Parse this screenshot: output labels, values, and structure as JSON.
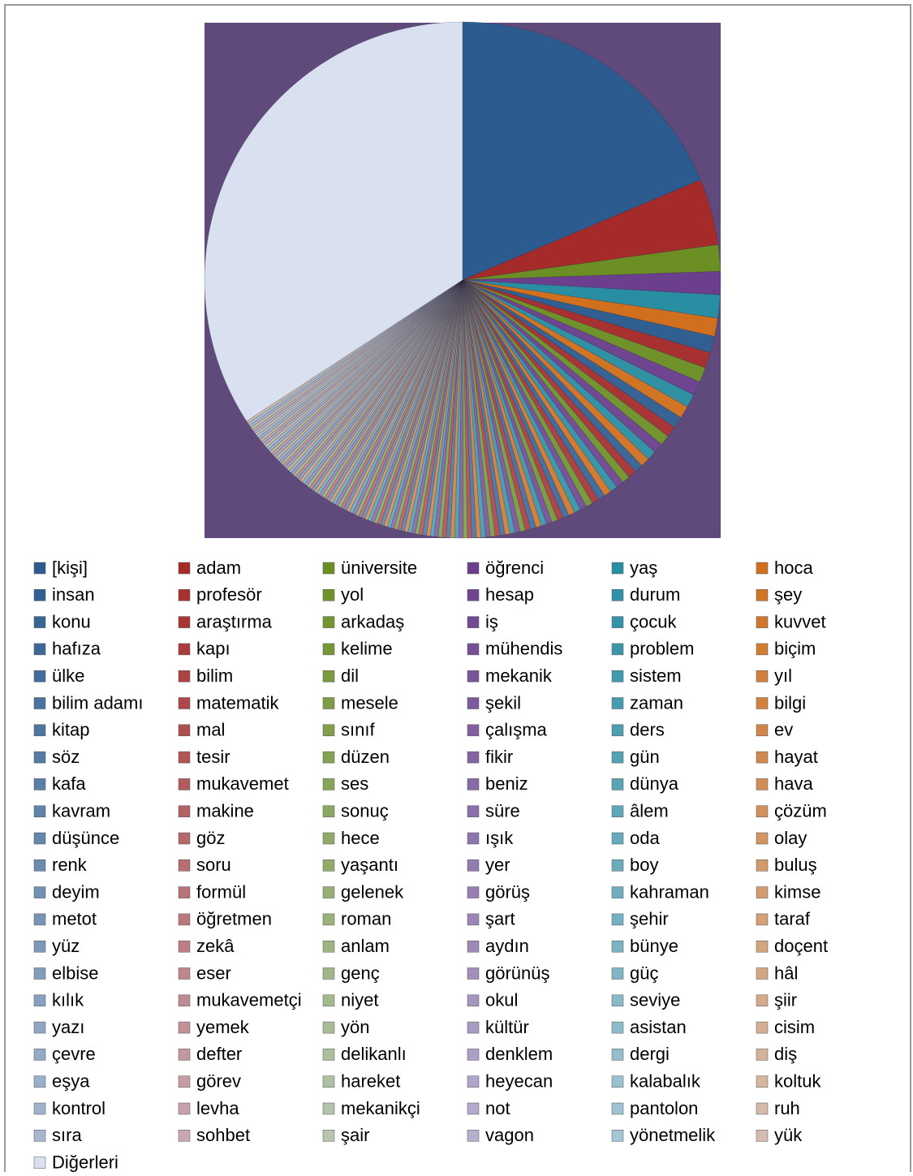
{
  "chart_data": {
    "type": "pie",
    "categories": [
      "[kişi]",
      "adam",
      "üniversite",
      "öğrenci",
      "yaş",
      "hoca",
      "insan",
      "profesör",
      "yol",
      "hesap",
      "durum",
      "şey",
      "konu",
      "araştırma",
      "arkadaş",
      "iş",
      "çocuk",
      "kuvvet",
      "hafıza",
      "kapı",
      "kelime",
      "mühendis",
      "problem",
      "biçim",
      "ülke",
      "bilim",
      "dil",
      "mekanik",
      "sistem",
      "yıl",
      "bilim adamı",
      "matematik",
      "mesele",
      "şekil",
      "zaman",
      "bilgi",
      "kitap",
      "mal",
      "sınıf",
      "çalışma",
      "ders",
      "ev",
      "söz",
      "tesir",
      "düzen",
      "fikir",
      "gün",
      "hayat",
      "kafa",
      "mukavemet",
      "ses",
      "beniz",
      "dünya",
      "hava",
      "kavram",
      "makine",
      "sonuç",
      "süre",
      "âlem",
      "çözüm",
      "düşünce",
      "göz",
      "hece",
      "ışık",
      "oda",
      "olay",
      "renk",
      "soru",
      "yaşantı",
      "yer",
      "boy",
      "buluş",
      "deyim",
      "formül",
      "gelenek",
      "görüş",
      "kahraman",
      "kimse",
      "metot",
      "öğretmen",
      "roman",
      "şart",
      "şehir",
      "taraf",
      "yüz",
      "zekâ",
      "anlam",
      "aydın",
      "bünye",
      "doçent",
      "elbise",
      "eser",
      "genç",
      "görünüş",
      "güç",
      "hâl",
      "kılık",
      "mukavemetçi",
      "niyet",
      "okul",
      "seviye",
      "şiir",
      "yazı",
      "yemek",
      "yön",
      "kültür",
      "asistan",
      "cisim",
      "çevre",
      "defter",
      "delikanlı",
      "denklem",
      "dergi",
      "diş",
      "eşya",
      "görev",
      "hareket",
      "heyecan",
      "kalabalık",
      "koltuk",
      "kontrol",
      "levha",
      "mekanikçi",
      "not",
      "pantolon",
      "ruh",
      "sıra",
      "sohbet",
      "şair",
      "vagon",
      "yönetmelik",
      "yük",
      "Diğerleri"
    ],
    "values": [
      18,
      4,
      1.6,
      1.4,
      1.4,
      1.1,
      1.0,
      0.95,
      0.9,
      0.85,
      0.8,
      0.75,
      0.7,
      0.65,
      0.62,
      0.6,
      0.57,
      0.55,
      0.52,
      0.5,
      0.48,
      0.46,
      0.45,
      0.44,
      0.43,
      0.42,
      0.41,
      0.4,
      0.39,
      0.38,
      0.37,
      0.36,
      0.35,
      0.34,
      0.34,
      0.33,
      0.33,
      0.32,
      0.32,
      0.31,
      0.31,
      0.3,
      0.3,
      0.29,
      0.29,
      0.28,
      0.28,
      0.27,
      0.27,
      0.26,
      0.26,
      0.26,
      0.25,
      0.25,
      0.25,
      0.24,
      0.24,
      0.24,
      0.23,
      0.23,
      0.23,
      0.23,
      0.22,
      0.22,
      0.22,
      0.22,
      0.21,
      0.21,
      0.21,
      0.21,
      0.21,
      0.21,
      0.21,
      0.2,
      0.2,
      0.2,
      0.2,
      0.2,
      0.2,
      0.2,
      0.2,
      0.2,
      0.2,
      0.2,
      0.19,
      0.19,
      0.19,
      0.19,
      0.19,
      0.19,
      0.19,
      0.18,
      0.18,
      0.18,
      0.18,
      0.18,
      0.18,
      0.18,
      0.18,
      0.18,
      0.18,
      0.18,
      0.17,
      0.17,
      0.17,
      0.17,
      0.17,
      0.17,
      0.17,
      0.16,
      0.16,
      0.16,
      0.16,
      0.16,
      0.16,
      0.16,
      0.16,
      0.16,
      0.16,
      0.16,
      0.15,
      0.15,
      0.15,
      0.15,
      0.15,
      0.15,
      0.15,
      0.15,
      0.15,
      0.15,
      0.15,
      0.15,
      33
    ],
    "palette": [
      "#2c5b8f",
      "#a52a2a",
      "#6b8f24",
      "#6b3f8e",
      "#2a8ea2",
      "#d0701e"
    ],
    "other_color": "#d9e1f0",
    "background_color": "#5f4a7b"
  }
}
